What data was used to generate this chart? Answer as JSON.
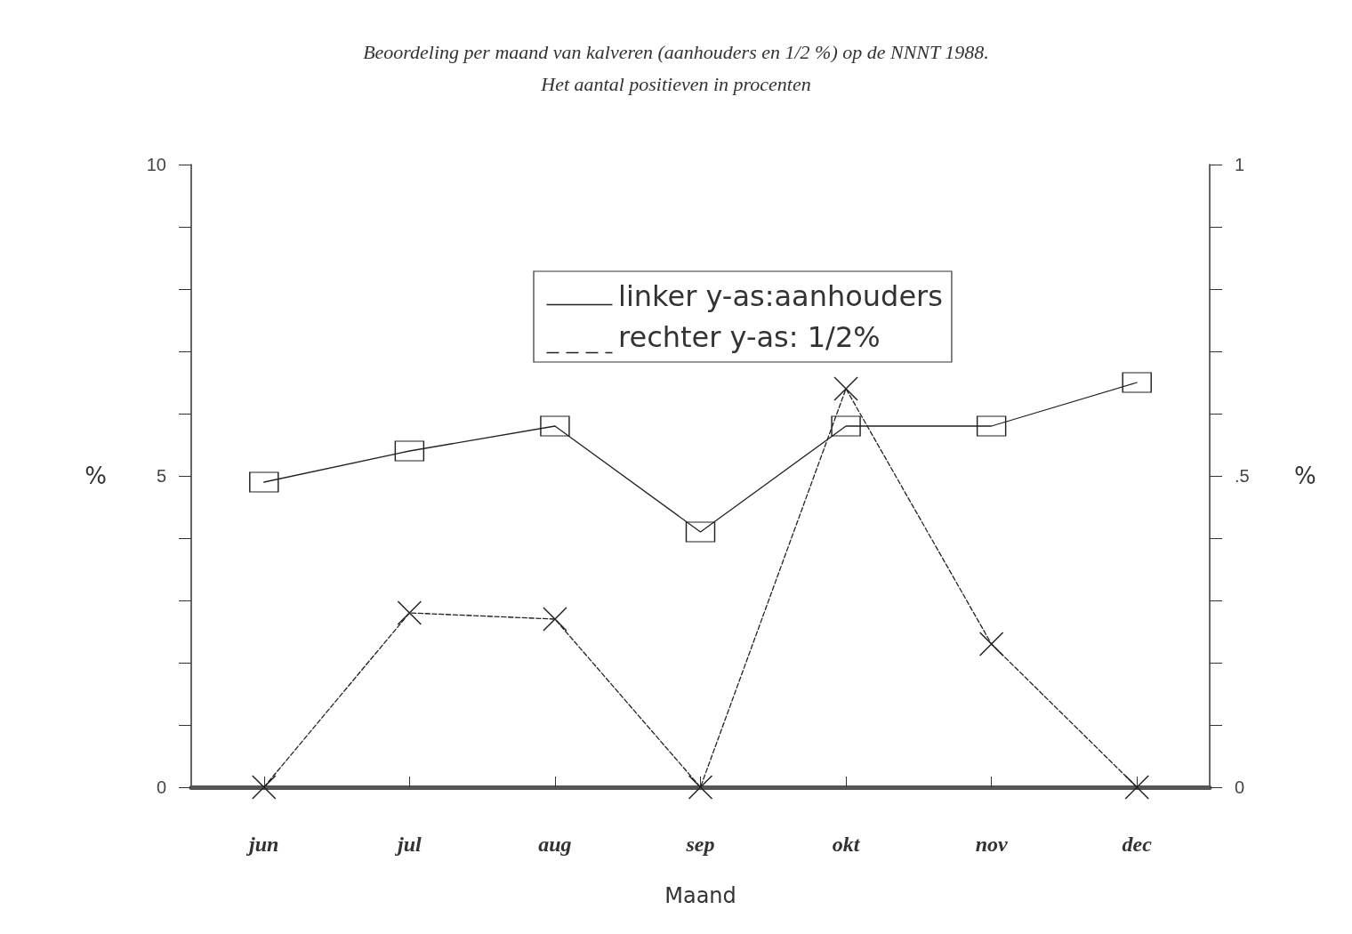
{
  "chart_data": {
    "type": "line",
    "title": "Beoordeling per maand van kalveren (aanhouders en 1/2 %) op de NNNT 1988.",
    "subtitle": "Het aantal positieven in procenten",
    "xlabel": "Maand",
    "ylabel": "%",
    "y2label": "%",
    "categories": [
      "jun",
      "jul",
      "aug",
      "sep",
      "okt",
      "nov",
      "dec"
    ],
    "series": [
      {
        "name": "linker y-as:aanhouders",
        "color": "#222222",
        "marker": "square",
        "line_style": "solid",
        "values": [
          4.9,
          5.4,
          5.8,
          4.1,
          5.8,
          5.8,
          6.5
        ]
      },
      {
        "name": "rechter y-as: 1/2%",
        "color": "#222222",
        "marker": "cross",
        "line_style": "dashed",
        "axis": "y2",
        "values": [
          0,
          0.28,
          0.27,
          0,
          0.64,
          0.23,
          0
        ]
      }
    ],
    "ylim": [
      0,
      10
    ],
    "yticks": [
      0,
      {
        "value": 1,
        "label": null
      },
      {
        "value": 2,
        "label": null
      },
      {
        "value": 3,
        "label": null
      },
      {
        "value": 4,
        "label": null
      },
      5,
      {
        "value": 6,
        "label": null
      },
      {
        "value": 7,
        "label": null
      },
      {
        "value": 8,
        "label": null
      },
      {
        "value": 9,
        "label": null
      },
      10
    ],
    "y2lim": [
      0,
      1
    ],
    "y2ticks": [
      0,
      {
        "value": 0.1,
        "label": null
      },
      {
        "value": 0.2,
        "label": null
      },
      {
        "value": 0.3,
        "label": null
      },
      {
        "value": 0.4,
        "label": null
      },
      {
        "value": 0.5,
        "label": ".5"
      },
      {
        "value": 0.6,
        "label": null
      },
      {
        "value": 0.7,
        "label": null
      },
      {
        "value": 0.8,
        "label": null
      },
      {
        "value": 0.9,
        "label": null
      },
      1
    ],
    "grid": false,
    "legend": "top"
  }
}
